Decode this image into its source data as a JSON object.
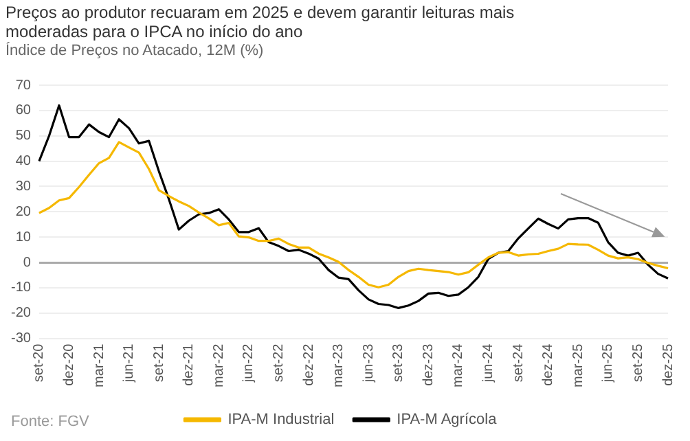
{
  "chart_data": {
    "type": "line",
    "title": "Preços ao produtor recuaram em 2025 e devem garantir leituras mais moderadas para o IPCA no início do ano",
    "subtitle": "Índice de Preços no Atacado, 12M (%)",
    "categories": [
      "set-20",
      null,
      null,
      "dez-20",
      null,
      null,
      "mar-21",
      null,
      null,
      "jun-21",
      null,
      null,
      "set-21",
      null,
      null,
      "dez-21",
      null,
      null,
      "mar-22",
      null,
      null,
      "jun-22",
      null,
      null,
      "set-22",
      null,
      null,
      "dez-22",
      null,
      null,
      "mar-23",
      null,
      null,
      "jun-23",
      null,
      null,
      "set-23",
      null,
      null,
      "dez-23",
      null,
      null,
      "mar-24",
      null,
      null,
      "jun-24",
      null,
      null,
      "set-24",
      null,
      null,
      "dez-24",
      null,
      null,
      "mar-25",
      null,
      null,
      "jun-25",
      null,
      null,
      "set-25",
      null,
      null,
      "dez-25"
    ],
    "series": [
      {
        "name": "IPA-M Industrial",
        "color": "#f5b800",
        "values": [
          19.5,
          21.5,
          24.5,
          25.4,
          29.8,
          34.6,
          39.2,
          41.3,
          47.5,
          45.4,
          43.4,
          36.9,
          28.5,
          26.2,
          24.1,
          22.3,
          19.7,
          17.4,
          14.7,
          15.6,
          10.3,
          9.9,
          8.5,
          8.5,
          9.4,
          7.3,
          5.9,
          5.9,
          3.5,
          2,
          0.2,
          -3,
          -5.7,
          -8.8,
          -9.8,
          -8.8,
          -5.7,
          -3.4,
          -2.5,
          -3,
          -3.4,
          -3.8,
          -4.8,
          -3.9,
          -0.9,
          2,
          3.8,
          4.1,
          2.7,
          3.2,
          3.4,
          4.5,
          5.4,
          7.3,
          7.1,
          7,
          5,
          2.7,
          1.6,
          2,
          1.3,
          -0.2,
          -1.3,
          -2.3
        ]
      },
      {
        "name": "IPA-M Agrícola",
        "color": "#000000",
        "values": [
          40,
          50,
          62,
          49.5,
          49.5,
          54.5,
          51.5,
          49.5,
          56.5,
          53,
          47,
          48,
          36,
          25,
          13,
          16.5,
          19,
          19.5,
          21,
          17,
          12,
          12,
          13.5,
          8,
          6.5,
          4.5,
          5,
          3.5,
          1.5,
          -3,
          -6,
          -6.6,
          -11,
          -14.6,
          -16.4,
          -16.8,
          -18,
          -17,
          -15.2,
          -12.3,
          -12,
          -13.2,
          -12.7,
          -9.8,
          -5.7,
          1.4,
          3.8,
          4.5,
          9.5,
          13.4,
          17.3,
          15.2,
          13.4,
          17,
          17.5,
          17.5,
          15.7,
          8,
          3.8,
          2.7,
          3.8,
          -0.9,
          -4.5,
          -6.3
        ]
      }
    ],
    "ylim": [
      -30,
      70
    ],
    "yticks": [
      -30,
      -20,
      -10,
      0,
      10,
      20,
      30,
      40,
      50,
      60,
      70
    ],
    "grid": "y",
    "legend": "bottom",
    "marker": "none",
    "line_style": "solid",
    "annotations": [
      "Fonte: FGV"
    ]
  }
}
